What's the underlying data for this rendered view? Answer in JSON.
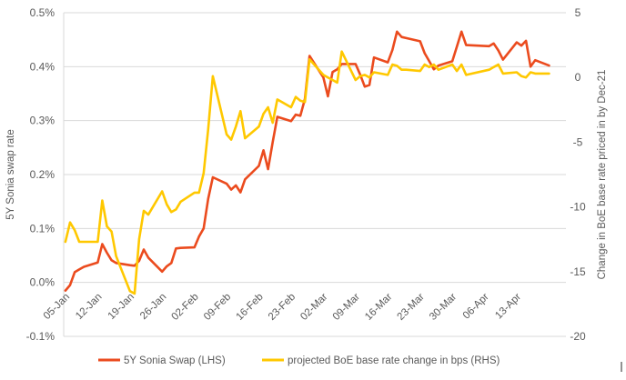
{
  "chart_data": {
    "type": "line",
    "xlabel": "",
    "ylabel": "5Y Sonia swap rate",
    "y2label": "Change in BoE base rate  priced in by Dec-21",
    "ylim": [
      -0.1,
      0.5
    ],
    "y2lim": [
      -20,
      5
    ],
    "y_ticks": [
      "0.5%",
      "0.4%",
      "0.3%",
      "0.2%",
      "0.1%",
      "0.0%",
      "-0.1%"
    ],
    "y2_ticks": [
      "5",
      "0",
      "-5",
      "-10",
      "-15",
      "-20"
    ],
    "x_ticks": [
      "05-Jan",
      "12-Jan",
      "19-Jan",
      "26-Jan",
      "02-Feb",
      "09-Feb",
      "16-Feb",
      "23-Feb",
      "02-Mar",
      "09-Mar",
      "16-Mar",
      "23-Mar",
      "30-Mar",
      "06-Apr",
      "13-Apr"
    ],
    "grid": true,
    "legend_position": "bottom",
    "series": [
      {
        "name": "5Y Sonia Swap (LHS)",
        "axis": "left",
        "color": "#EB4B1E",
        "points": [
          [
            "04-Jan",
            -0.015
          ],
          [
            "05-Jan",
            -0.005
          ],
          [
            "06-Jan",
            0.019
          ],
          [
            "07-Jan",
            0.024
          ],
          [
            "08-Jan",
            0.029
          ],
          [
            "11-Jan",
            0.037
          ],
          [
            "12-Jan",
            0.071
          ],
          [
            "13-Jan",
            0.055
          ],
          [
            "14-Jan",
            0.041
          ],
          [
            "15-Jan",
            0.036
          ],
          [
            "18-Jan",
            0.032
          ],
          [
            "19-Jan",
            0.031
          ],
          [
            "20-Jan",
            0.04
          ],
          [
            "21-Jan",
            0.061
          ],
          [
            "22-Jan",
            0.046
          ],
          [
            "25-Jan",
            0.02
          ],
          [
            "26-Jan",
            0.03
          ],
          [
            "27-Jan",
            0.036
          ],
          [
            "28-Jan",
            0.063
          ],
          [
            "29-Jan",
            0.064
          ],
          [
            "01-Feb",
            0.065
          ],
          [
            "02-Feb",
            0.085
          ],
          [
            "03-Feb",
            0.1
          ],
          [
            "04-Feb",
            0.155
          ],
          [
            "05-Feb",
            0.195
          ],
          [
            "08-Feb",
            0.183
          ],
          [
            "09-Feb",
            0.172
          ],
          [
            "10-Feb",
            0.18
          ],
          [
            "11-Feb",
            0.167
          ],
          [
            "12-Feb",
            0.191
          ],
          [
            "15-Feb",
            0.216
          ],
          [
            "16-Feb",
            0.245
          ],
          [
            "17-Feb",
            0.21
          ],
          [
            "18-Feb",
            0.26
          ],
          [
            "19-Feb",
            0.307
          ],
          [
            "22-Feb",
            0.299
          ],
          [
            "23-Feb",
            0.311
          ],
          [
            "24-Feb",
            0.309
          ],
          [
            "25-Feb",
            0.34
          ],
          [
            "26-Feb",
            0.42
          ],
          [
            "01-Mar",
            0.38
          ],
          [
            "02-Mar",
            0.345
          ],
          [
            "03-Mar",
            0.39
          ],
          [
            "04-Mar",
            0.395
          ],
          [
            "05-Mar",
            0.405
          ],
          [
            "08-Mar",
            0.405
          ],
          [
            "09-Mar",
            0.385
          ],
          [
            "10-Mar",
            0.363
          ],
          [
            "11-Mar",
            0.366
          ],
          [
            "12-Mar",
            0.417
          ],
          [
            "15-Mar",
            0.408
          ],
          [
            "16-Mar",
            0.431
          ],
          [
            "17-Mar",
            0.465
          ],
          [
            "18-Mar",
            0.455
          ],
          [
            "19-Mar",
            0.453
          ],
          [
            "22-Mar",
            0.447
          ],
          [
            "23-Mar",
            0.425
          ],
          [
            "24-Mar",
            0.41
          ],
          [
            "25-Mar",
            0.395
          ],
          [
            "26-Mar",
            0.402
          ],
          [
            "29-Mar",
            0.41
          ],
          [
            "30-Mar",
            0.437
          ],
          [
            "31-Mar",
            0.465
          ],
          [
            "01-Apr",
            0.44
          ],
          [
            "06-Apr",
            0.438
          ],
          [
            "07-Apr",
            0.443
          ],
          [
            "08-Apr",
            0.43
          ],
          [
            "09-Apr",
            0.413
          ],
          [
            "12-Apr",
            0.445
          ],
          [
            "13-Apr",
            0.439
          ],
          [
            "14-Apr",
            0.448
          ],
          [
            "15-Apr",
            0.4
          ],
          [
            "16-Apr",
            0.412
          ],
          [
            "19-Apr",
            0.402
          ]
        ]
      },
      {
        "name": "projected BoE base rate change in bps (RHS)",
        "axis": "right",
        "color": "#FFC800",
        "points": [
          [
            "04-Jan",
            -12.7
          ],
          [
            "05-Jan",
            -11.2
          ],
          [
            "06-Jan",
            -11.8
          ],
          [
            "07-Jan",
            -12.7
          ],
          [
            "08-Jan",
            -12.7
          ],
          [
            "11-Jan",
            -12.7
          ],
          [
            "12-Jan",
            -9.5
          ],
          [
            "13-Jan",
            -11.5
          ],
          [
            "14-Jan",
            -11.9
          ],
          [
            "15-Jan",
            -13.8
          ],
          [
            "18-Jan",
            -16.5
          ],
          [
            "19-Jan",
            -16.7
          ],
          [
            "20-Jan",
            -12.5
          ],
          [
            "21-Jan",
            -10.3
          ],
          [
            "22-Jan",
            -10.6
          ],
          [
            "25-Jan",
            -8.8
          ],
          [
            "26-Jan",
            -9.8
          ],
          [
            "27-Jan",
            -10.4
          ],
          [
            "28-Jan",
            -10.2
          ],
          [
            "29-Jan",
            -9.6
          ],
          [
            "01-Feb",
            -8.9
          ],
          [
            "02-Feb",
            -8.9
          ],
          [
            "03-Feb",
            -7.4
          ],
          [
            "04-Feb",
            -4.0
          ],
          [
            "05-Feb",
            0.1
          ],
          [
            "08-Feb",
            -4.4
          ],
          [
            "09-Feb",
            -4.8
          ],
          [
            "10-Feb",
            -3.8
          ],
          [
            "11-Feb",
            -2.6
          ],
          [
            "12-Feb",
            -4.7
          ],
          [
            "15-Feb",
            -3.8
          ],
          [
            "16-Feb",
            -2.8
          ],
          [
            "17-Feb",
            -2.3
          ],
          [
            "18-Feb",
            -3.5
          ],
          [
            "19-Feb",
            -1.7
          ],
          [
            "22-Feb",
            -2.3
          ],
          [
            "23-Feb",
            -1.5
          ],
          [
            "24-Feb",
            -1.8
          ],
          [
            "25-Feb",
            -1.9
          ],
          [
            "26-Feb",
            1.4
          ],
          [
            "01-Mar",
            0.2
          ],
          [
            "02-Mar",
            0.0
          ],
          [
            "03-Mar",
            -0.2
          ],
          [
            "04-Mar",
            -0.4
          ],
          [
            "05-Mar",
            2.0
          ],
          [
            "08-Mar",
            -0.2
          ],
          [
            "09-Mar",
            0.1
          ],
          [
            "10-Mar",
            0.2
          ],
          [
            "11-Mar",
            0.0
          ],
          [
            "12-Mar",
            0.4
          ],
          [
            "15-Mar",
            0.2
          ],
          [
            "16-Mar",
            1.0
          ],
          [
            "17-Mar",
            0.9
          ],
          [
            "18-Mar",
            0.6
          ],
          [
            "19-Mar",
            0.6
          ],
          [
            "22-Mar",
            0.5
          ],
          [
            "23-Mar",
            1.0
          ],
          [
            "24-Mar",
            0.8
          ],
          [
            "25-Mar",
            1.0
          ],
          [
            "26-Mar",
            0.6
          ],
          [
            "29-Mar",
            1.0
          ],
          [
            "30-Mar",
            0.5
          ],
          [
            "31-Mar",
            1.0
          ],
          [
            "01-Apr",
            0.2
          ],
          [
            "06-Apr",
            0.6
          ],
          [
            "07-Apr",
            0.8
          ],
          [
            "08-Apr",
            1.0
          ],
          [
            "09-Apr",
            0.3
          ],
          [
            "12-Apr",
            0.4
          ],
          [
            "13-Apr",
            0.1
          ],
          [
            "14-Apr",
            0.0
          ],
          [
            "15-Apr",
            0.4
          ],
          [
            "16-Apr",
            0.3
          ],
          [
            "19-Apr",
            0.3
          ]
        ]
      }
    ]
  }
}
